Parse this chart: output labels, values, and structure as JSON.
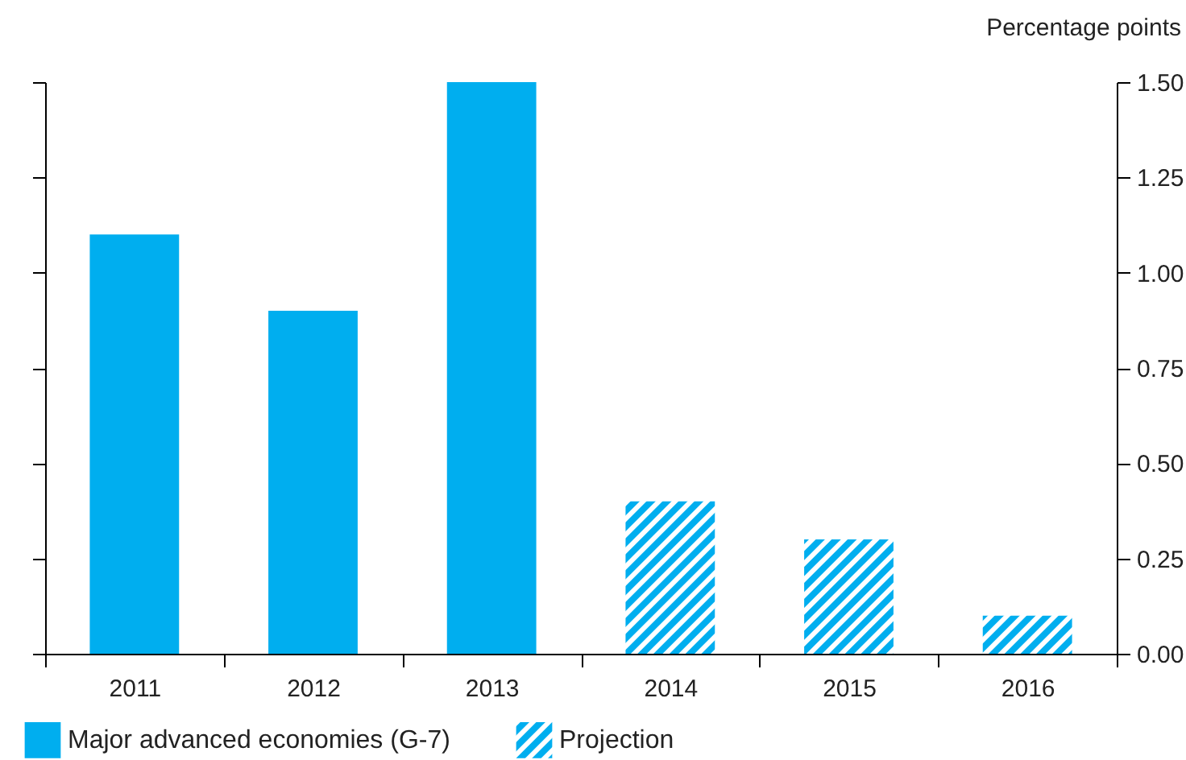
{
  "chart_data": {
    "type": "bar",
    "ylabel": "Percentage points",
    "categories": [
      "2011",
      "2012",
      "2013",
      "2014",
      "2015",
      "2016"
    ],
    "series": [
      {
        "name": "Major advanced economies (G-7)",
        "color": "#00aeef",
        "values": [
          1.1,
          0.9,
          1.5,
          null,
          null,
          null
        ]
      },
      {
        "name": "Projection",
        "color": "#00aeef",
        "values": [
          null,
          null,
          null,
          0.4,
          0.3,
          0.1
        ]
      }
    ],
    "ylim": [
      0,
      1.5
    ],
    "yticks": [
      {
        "value": 0,
        "label": "0.00"
      },
      {
        "value": 0.25,
        "label": "0.25"
      },
      {
        "value": 0.5,
        "label": "0.50"
      },
      {
        "value": 0.75,
        "label": "0.75"
      },
      {
        "value": 1,
        "label": "1.00"
      },
      {
        "value": 1.25,
        "label": "1.25"
      },
      {
        "value": 1.5,
        "label": "1.50"
      }
    ],
    "grid": false,
    "legend": "bottom left"
  }
}
